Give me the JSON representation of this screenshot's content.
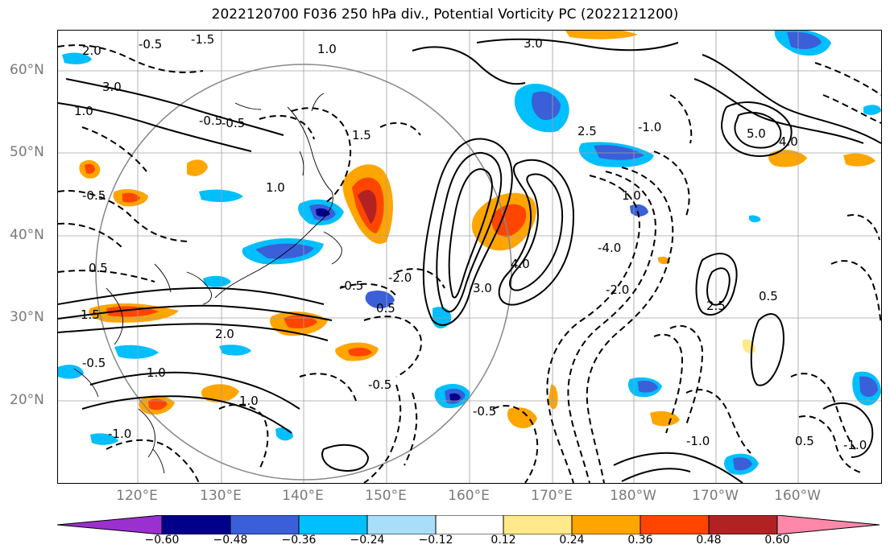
{
  "title": "2022120700 F036 250 hPa div., Potential Vorticity PC (2022121200)",
  "lat_labels": [
    "60°N",
    "50°N",
    "40°N",
    "30°N",
    "20°N"
  ],
  "lon_labels": [
    "120°E",
    "130°E",
    "140°E",
    "150°E",
    "160°E",
    "170°E",
    "180°W",
    "170°W",
    "160°W"
  ],
  "colorbar": {
    "colors": [
      "#9b30d0",
      "#00008b",
      "#3a5fd9",
      "#00bfff",
      "#a8def8",
      "#ffffff",
      "#ffe98a",
      "#ffa500",
      "#ff4500",
      "#b22222",
      "#ff88aa"
    ],
    "tick_labels": [
      "−0.60",
      "−0.48",
      "−0.36",
      "−0.24",
      "−0.12",
      "0.12",
      "0.24",
      "0.36",
      "0.48",
      "0.60"
    ]
  },
  "contour_labels": {
    "l1": "-1.5",
    "l2": "2.0",
    "l3": "-0.5",
    "l4": "3.0",
    "l5": "1.0",
    "l6": "1.0",
    "l7": "-0.5",
    "l8": "1.5",
    "l9": "1.0",
    "l10": "-0.5",
    "l11": "2.5",
    "l12": "-1.0",
    "l13": "5.0",
    "l14": "4.0",
    "l15": "-4.0",
    "l16": "-2.0",
    "l17": "2.5",
    "l18": "0.5",
    "l19": "3.0",
    "l20": "4.0",
    "l21": "-0.5",
    "l22": "2.0",
    "l23": "1.5",
    "l24": "-0.5",
    "l25": "-1.0",
    "l26": "0.5",
    "l27": "-0.5",
    "l28": "1.0",
    "l29": "-0.5",
    "l30": "0.5",
    "l31": "1.0",
    "l32": "-1.0",
    "l33": "1.0",
    "l34": "3.0",
    "l35": "-0.5",
    "l36": "-1.0",
    "l37": "0.5",
    "l38": "-2.0"
  }
}
